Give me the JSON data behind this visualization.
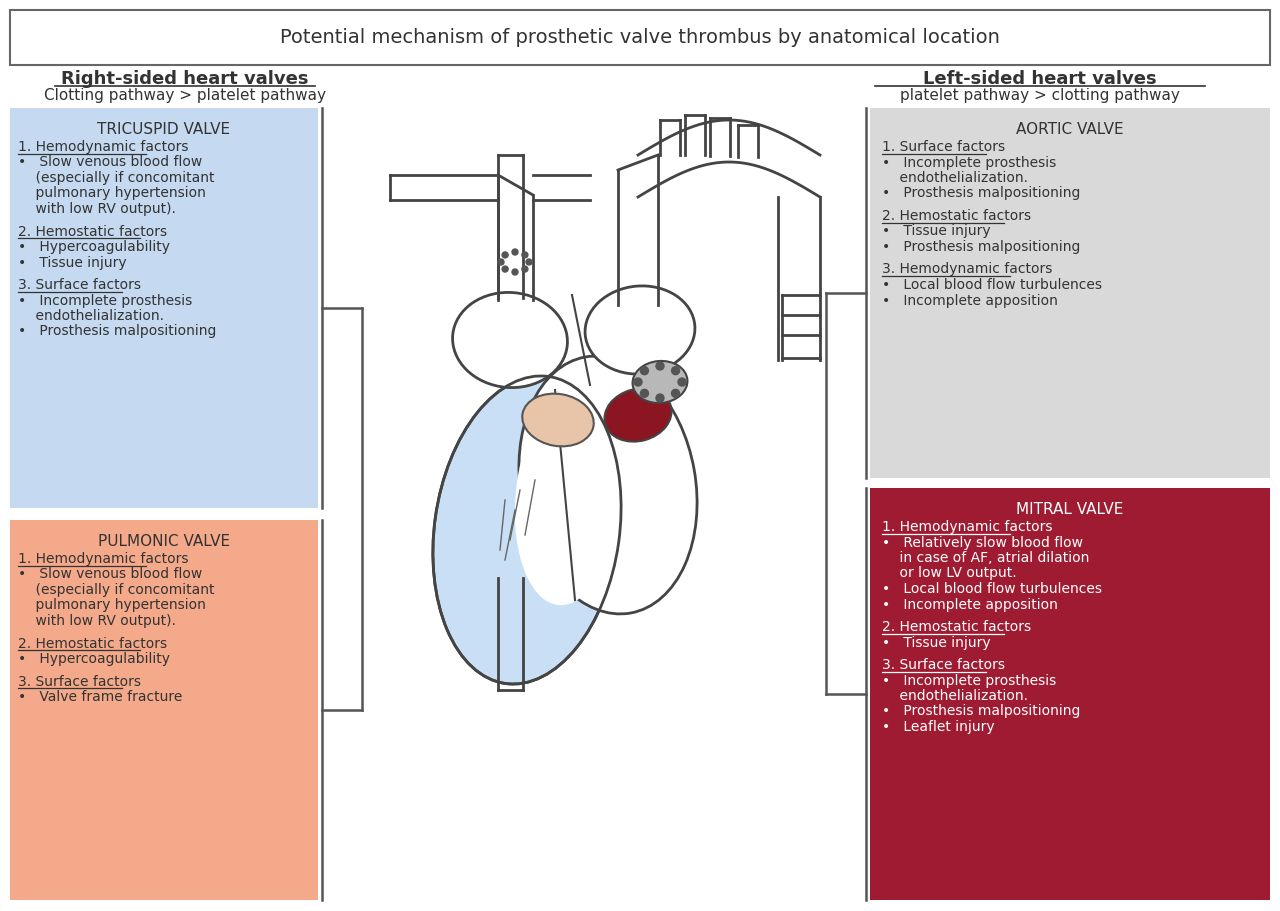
{
  "title": "Potential mechanism of prosthetic valve thrombus by anatomical location",
  "right_header": "Right-sided heart valves",
  "right_subheader": "Clotting pathway > platelet pathway",
  "left_header": "Left-sided heart valves",
  "left_subheader": "platelet pathway > clotting pathway",
  "tricuspid_title": "TRICUSPID VALVE",
  "tricuspid_bg": "#c5d9f0",
  "tricuspid_content": "1. Hemodynamic factors\n•   Slow venous blood flow\n    (especially if concomitant\n    pulmonary hypertension\n    with low RV output).\n\n2. Hemostatic factors\n•   Hypercoagulability\n•   Tissue injury\n\n3. Surface factors\n•   Incomplete prosthesis\n    endothelialization.\n•   Prosthesis malpositioning",
  "pulmonic_title": "PULMONIC VALVE",
  "pulmonic_bg": "#f4a98a",
  "pulmonic_content": "1. Hemodynamic factors\n•   Slow venous blood flow\n    (especially if concomitant\n    pulmonary hypertension\n    with low RV output).\n\n2. Hemostatic factors\n•   Hypercoagulability\n\n3. Surface factors\n•   Valve frame fracture",
  "aortic_title": "AORTIC VALVE",
  "aortic_bg": "#d9d9d9",
  "aortic_content": "1. Surface factors\n•   Incomplete prosthesis\n    endothelialization.\n•   Prosthesis malpositioning\n\n2. Hemostatic factors\n•   Tissue injury\n•   Prosthesis malpositioning\n\n3. Hemodynamic factors\n•   Local blood flow turbulences\n•   Incomplete apposition",
  "mitral_title": "MITRAL VALVE",
  "mitral_bg": "#9e1b32",
  "mitral_content": "1. Hemodynamic factors\n•   Relatively slow blood flow\n    in case of AF, atrial dilation\n    or low LV output.\n•   Local blood flow turbulences\n•   Incomplete apposition\n\n2. Hemostatic factors\n•   Tissue injury\n\n3. Surface factors\n•   Incomplete prosthesis\n    endothelialization.\n•   Prosthesis malpositioning\n•   Leaflet injury",
  "mitral_text_color": "#ffffff",
  "dark_text": "#333333",
  "border_color": "#555555",
  "title_box_border": "#666666",
  "fig_bg": "#ffffff",
  "lw_bracket": 1.8
}
